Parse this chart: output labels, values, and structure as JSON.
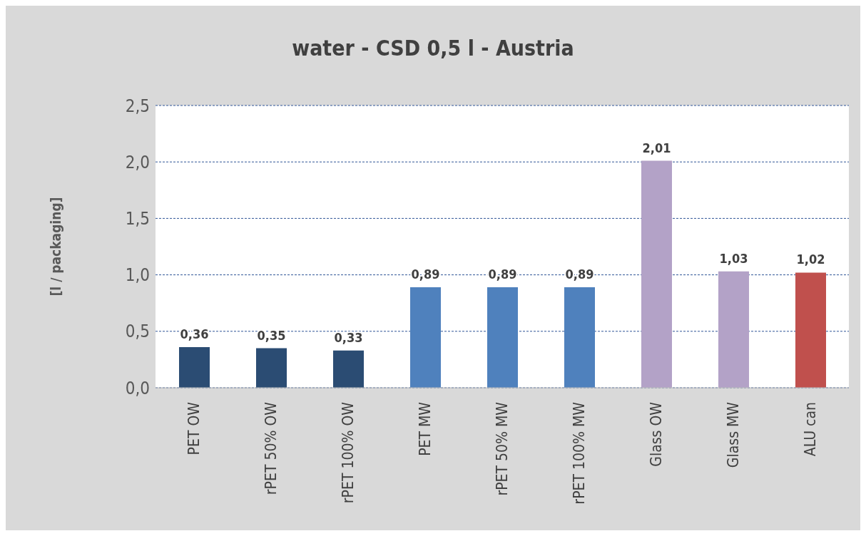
{
  "chart_data": {
    "type": "bar",
    "title": "water - CSD 0,5 l - Austria",
    "ylabel": "[l / packaging]",
    "categories": [
      "PET OW",
      "rPET 50% OW",
      "rPET 100% OW",
      "PET MW",
      "rPET 50% MW",
      "rPET 100% MW",
      "Glass OW",
      "Glass MW",
      "ALU can"
    ],
    "values": [
      0.36,
      0.35,
      0.33,
      0.89,
      0.89,
      0.89,
      2.01,
      1.03,
      1.02
    ],
    "value_labels": [
      "0,36",
      "0,35",
      "0,33",
      "0,89",
      "0,89",
      "0,89",
      "2,01",
      "1,03",
      "1,02"
    ],
    "colors": [
      "#2b4c73",
      "#2b4c73",
      "#2b4c73",
      "#4f81bd",
      "#4f81bd",
      "#4f81bd",
      "#b3a2c7",
      "#b3a2c7",
      "#c0504d"
    ],
    "ylim": [
      0,
      2.5
    ],
    "yticks": [
      {
        "value": 0,
        "label": "0,0"
      },
      {
        "value": 0.5,
        "label": "0,5"
      },
      {
        "value": 1,
        "label": "1,0"
      },
      {
        "value": 1.5,
        "label": "1,5"
      },
      {
        "value": 2,
        "label": "2,0"
      },
      {
        "value": 2.5,
        "label": "2,5"
      }
    ],
    "grid": "y"
  }
}
